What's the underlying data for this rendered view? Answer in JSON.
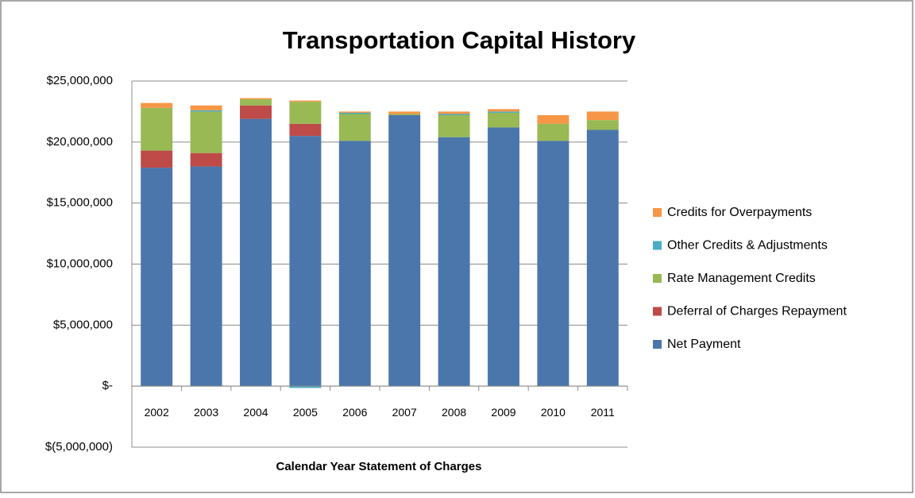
{
  "chart_data": {
    "type": "stacked_bar",
    "title": "Transportation Capital History",
    "x_label": "Calendar Year Statement of Charges",
    "categories": [
      "2002",
      "2003",
      "2004",
      "2005",
      "2006",
      "2007",
      "2008",
      "2009",
      "2010",
      "2011"
    ],
    "series": [
      {
        "name": "Net Payment",
        "color": "#4a76ab",
        "values": [
          17900000,
          18000000,
          21900000,
          20500000,
          20100000,
          22200000,
          20400000,
          21200000,
          20100000,
          21000000
        ]
      },
      {
        "name": "Deferral of Charges Repayment",
        "color": "#be4b48",
        "values": [
          1400000,
          1100000,
          1100000,
          1000000,
          0,
          0,
          0,
          0,
          0,
          0
        ]
      },
      {
        "name": "Rate Management Credits",
        "color": "#98b954",
        "values": [
          3500000,
          3400000,
          500000,
          1800000,
          2200000,
          100000,
          1800000,
          1200000,
          1400000,
          800000
        ]
      },
      {
        "name": "Other Credits & Adjustments",
        "color": "#4bacc6",
        "values": [
          0,
          100000,
          0,
          -150000,
          100000,
          0,
          100000,
          100000,
          0,
          0
        ]
      },
      {
        "name": "Credits for Overpayments",
        "color": "#f79646",
        "values": [
          400000,
          400000,
          100000,
          100000,
          100000,
          200000,
          200000,
          200000,
          700000,
          700000
        ]
      }
    ],
    "ylim": [
      -5000000,
      25000000
    ],
    "yticks": [
      {
        "value": -5000000,
        "label": "$(5,000,000)"
      },
      {
        "value": 0,
        "label": "$-"
      },
      {
        "value": 5000000,
        "label": "$5,000,000"
      },
      {
        "value": 10000000,
        "label": "$10,000,000"
      },
      {
        "value": 15000000,
        "label": "$15,000,000"
      },
      {
        "value": 20000000,
        "label": "$20,000,000"
      },
      {
        "value": 25000000,
        "label": "$25,000,000"
      }
    ],
    "grid": true,
    "legend": "right"
  }
}
